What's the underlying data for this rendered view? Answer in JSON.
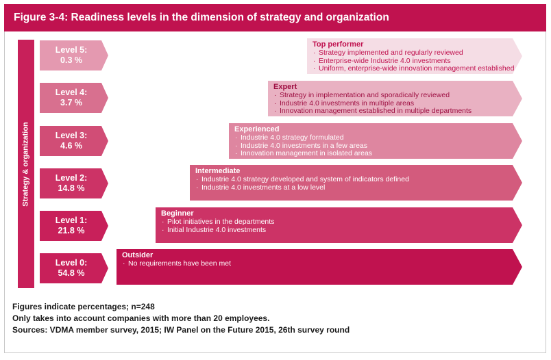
{
  "title": "Figure 3-4: Readiness levels in the dimension of strategy and organization",
  "side_label": "Strategy & organization",
  "colors": {
    "title_bg": "#c0124f",
    "side_bar": "#c8205a",
    "level_tags": [
      "#c8205a",
      "#c8205a",
      "#cc3366",
      "#d14d76",
      "#d8708f",
      "#e499b0"
    ],
    "stages": [
      "#c0124f",
      "#cc3366",
      "#d35b7d",
      "#de86a0",
      "#e9b1c2",
      "#f5dde5"
    ]
  },
  "levels": [
    {
      "label": "Level 0:",
      "value": "54.8 %",
      "stage": {
        "name": "Outsider",
        "items": [
          "No requirements have been met"
        ]
      }
    },
    {
      "label": "Level 1:",
      "value": "21.8 %",
      "stage": {
        "name": "Beginner",
        "items": [
          "Pilot initiatives in the departments",
          "Initial Industrie 4.0 investments"
        ]
      }
    },
    {
      "label": "Level 2:",
      "value": "14.8 %",
      "stage": {
        "name": "Intermediate",
        "items": [
          "Industrie 4.0 strategy developed and system of indicators defined",
          "Industrie 4.0 investments at a low level"
        ]
      }
    },
    {
      "label": "Level 3:",
      "value": "4.6 %",
      "stage": {
        "name": "Experienced",
        "items": [
          "Industrie 4.0 strategy formulated",
          "Industrie 4.0 investments in a few areas",
          "Innovation management in isolated areas"
        ]
      }
    },
    {
      "label": "Level 4:",
      "value": "3.7 %",
      "stage": {
        "name": "Expert",
        "items": [
          "Strategy in implementation and sporadically reviewed",
          "Industrie 4.0 investments in multiple areas",
          "Innovation management established in multiple departments"
        ]
      }
    },
    {
      "label": "Level 5:",
      "value": "0.3 %",
      "stage": {
        "name": "Top performer",
        "items": [
          "Strategy implemented and regularly reviewed",
          "Enterprise-wide Industrie 4.0 investments",
          "Uniform, enterprise-wide innovation management established"
        ]
      }
    }
  ],
  "notes": [
    "Figures indicate percentages; n=248",
    "Only takes into account companies with more than 20 employees.",
    "Sources: VDMA member survey, 2015; IW Panel on the Future 2015, 26th survey round"
  ]
}
